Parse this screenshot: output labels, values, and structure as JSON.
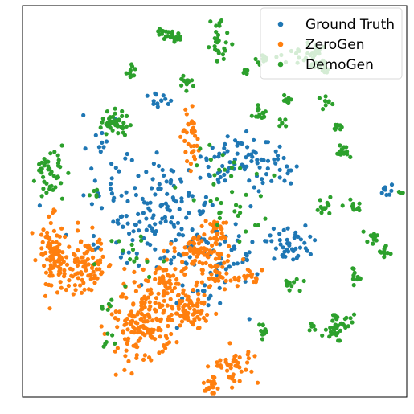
{
  "chart_data": {
    "type": "scatter",
    "title": "",
    "xlabel": "",
    "ylabel": "",
    "axes": {
      "ticks": "none",
      "grid": false,
      "frame": true
    },
    "legend": {
      "placement": "top-right",
      "items": [
        {
          "label": "Ground Truth",
          "color": "#1f77b4"
        },
        {
          "label": "ZeroGen",
          "color": "#ff7f0e"
        },
        {
          "label": "DemoGen",
          "color": "#2ca02c"
        }
      ]
    },
    "series": [
      {
        "name": "Ground Truth",
        "color": "#1f77b4",
        "clusters": [
          {
            "center": [
              0.37,
              0.52
            ],
            "spread": [
              0.1,
              0.07
            ],
            "count": 170
          },
          {
            "center": [
              0.58,
              0.4
            ],
            "spread": [
              0.05,
              0.04
            ],
            "count": 60
          },
          {
            "center": [
              0.69,
              0.61
            ],
            "spread": [
              0.03,
              0.025
            ],
            "count": 40
          },
          {
            "center": [
              0.68,
              0.42
            ],
            "spread": [
              0.02,
              0.02
            ],
            "count": 12
          },
          {
            "center": [
              0.35,
              0.24
            ],
            "spread": [
              0.015,
              0.01
            ],
            "count": 14
          },
          {
            "center": [
              0.95,
              0.47
            ],
            "spread": [
              0.01,
              0.012
            ],
            "count": 8
          },
          {
            "center": [
              0.2,
              0.38
            ],
            "spread": [
              0.03,
              0.05
            ],
            "count": 18
          },
          {
            "center": [
              0.5,
              0.66
            ],
            "spread": [
              0.08,
              0.06
            ],
            "count": 60
          }
        ]
      },
      {
        "name": "ZeroGen",
        "color": "#ff7f0e",
        "clusters": [
          {
            "center": [
              0.08,
              0.64
            ],
            "spread": [
              0.022,
              0.045
            ],
            "count": 110
          },
          {
            "center": [
              0.17,
              0.66
            ],
            "spread": [
              0.022,
              0.035
            ],
            "count": 80
          },
          {
            "center": [
              0.31,
              0.8
            ],
            "spread": [
              0.045,
              0.05
            ],
            "count": 160
          },
          {
            "center": [
              0.38,
              0.71
            ],
            "spread": [
              0.035,
              0.025
            ],
            "count": 60
          },
          {
            "center": [
              0.44,
              0.78
            ],
            "spread": [
              0.03,
              0.025
            ],
            "count": 70
          },
          {
            "center": [
              0.45,
              0.63
            ],
            "spread": [
              0.025,
              0.02
            ],
            "count": 50
          },
          {
            "center": [
              0.5,
              0.68
            ],
            "spread": [
              0.02,
              0.025
            ],
            "count": 40
          },
          {
            "center": [
              0.51,
              0.58
            ],
            "spread": [
              0.02,
              0.02
            ],
            "count": 35
          },
          {
            "center": [
              0.55,
              0.92
            ],
            "spread": [
              0.025,
              0.025
            ],
            "count": 45
          },
          {
            "center": [
              0.49,
              0.97
            ],
            "spread": [
              0.012,
              0.015
            ],
            "count": 20
          },
          {
            "center": [
              0.44,
              0.33
            ],
            "spread": [
              0.012,
              0.035
            ],
            "count": 35
          },
          {
            "center": [
              0.59,
              0.69
            ],
            "spread": [
              0.02,
              0.015
            ],
            "count": 20
          }
        ]
      },
      {
        "name": "DemoGen",
        "color": "#2ca02c",
        "clusters": [
          {
            "center": [
              0.07,
              0.43
            ],
            "spread": [
              0.018,
              0.03
            ],
            "count": 45
          },
          {
            "center": [
              0.24,
              0.3
            ],
            "spread": [
              0.02,
              0.015
            ],
            "count": 45
          },
          {
            "center": [
              0.37,
              0.07
            ],
            "spread": [
              0.012,
              0.006
            ],
            "count": 16
          },
          {
            "center": [
              0.4,
              0.08
            ],
            "spread": [
              0.01,
              0.006
            ],
            "count": 12
          },
          {
            "center": [
              0.51,
              0.09
            ],
            "spread": [
              0.01,
              0.025
            ],
            "count": 30
          },
          {
            "center": [
              0.62,
              0.14
            ],
            "spread": [
              0.008,
              0.008
            ],
            "count": 10
          },
          {
            "center": [
              0.43,
              0.19
            ],
            "spread": [
              0.012,
              0.01
            ],
            "count": 14
          },
          {
            "center": [
              0.28,
              0.17
            ],
            "spread": [
              0.01,
              0.01
            ],
            "count": 10
          },
          {
            "center": [
              0.75,
              0.12
            ],
            "spread": [
              0.03,
              0.015
            ],
            "count": 35
          },
          {
            "center": [
              0.78,
              0.15
            ],
            "spread": [
              0.012,
              0.015
            ],
            "count": 12
          },
          {
            "center": [
              0.62,
              0.27
            ],
            "spread": [
              0.008,
              0.008
            ],
            "count": 8
          },
          {
            "center": [
              0.58,
              0.17
            ],
            "spread": [
              0.006,
              0.006
            ],
            "count": 4
          },
          {
            "center": [
              0.69,
              0.24
            ],
            "spread": [
              0.008,
              0.008
            ],
            "count": 8
          },
          {
            "center": [
              0.62,
              0.28
            ],
            "spread": [
              0.01,
              0.006
            ],
            "count": 6
          },
          {
            "center": [
              0.68,
              0.3
            ],
            "spread": [
              0.008,
              0.006
            ],
            "count": 6
          },
          {
            "center": [
              0.79,
              0.25
            ],
            "spread": [
              0.008,
              0.008
            ],
            "count": 8
          },
          {
            "center": [
              0.82,
              0.31
            ],
            "spread": [
              0.008,
              0.008
            ],
            "count": 8
          },
          {
            "center": [
              0.83,
              0.37
            ],
            "spread": [
              0.012,
              0.012
            ],
            "count": 14
          },
          {
            "center": [
              0.79,
              0.51
            ],
            "spread": [
              0.012,
              0.012
            ],
            "count": 14
          },
          {
            "center": [
              0.87,
              0.51
            ],
            "spread": [
              0.01,
              0.008
            ],
            "count": 10
          },
          {
            "center": [
              0.9,
              0.59
            ],
            "spread": [
              0.012,
              0.012
            ],
            "count": 12
          },
          {
            "center": [
              0.94,
              0.63
            ],
            "spread": [
              0.01,
              0.01
            ],
            "count": 10
          },
          {
            "center": [
              0.87,
              0.69
            ],
            "spread": [
              0.01,
              0.01
            ],
            "count": 10
          },
          {
            "center": [
              0.82,
              0.82
            ],
            "spread": [
              0.018,
              0.015
            ],
            "count": 35
          },
          {
            "center": [
              0.63,
              0.83
            ],
            "spread": [
              0.012,
              0.01
            ],
            "count": 12
          },
          {
            "center": [
              0.76,
              0.82
            ],
            "spread": [
              0.01,
              0.006
            ],
            "count": 6
          },
          {
            "center": [
              0.7,
              0.71
            ],
            "spread": [
              0.015,
              0.012
            ],
            "count": 12
          },
          {
            "center": [
              0.22,
              0.76
            ],
            "spread": [
              0.008,
              0.01
            ],
            "count": 6
          },
          {
            "center": [
              0.22,
              0.86
            ],
            "spread": [
              0.01,
              0.01
            ],
            "count": 6
          },
          {
            "center": [
              0.99,
              0.48
            ],
            "spread": [
              0.006,
              0.006
            ],
            "count": 4
          },
          {
            "center": [
              0.19,
              0.48
            ],
            "spread": [
              0.008,
              0.008
            ],
            "count": 5
          },
          {
            "center": [
              0.52,
              0.45
            ],
            "spread": [
              0.06,
              0.05
            ],
            "count": 25
          },
          {
            "center": [
              0.31,
              0.65
            ],
            "spread": [
              0.04,
              0.04
            ],
            "count": 15
          },
          {
            "center": [
              0.56,
              0.55
            ],
            "spread": [
              0.04,
              0.03
            ],
            "count": 12
          }
        ]
      }
    ]
  }
}
